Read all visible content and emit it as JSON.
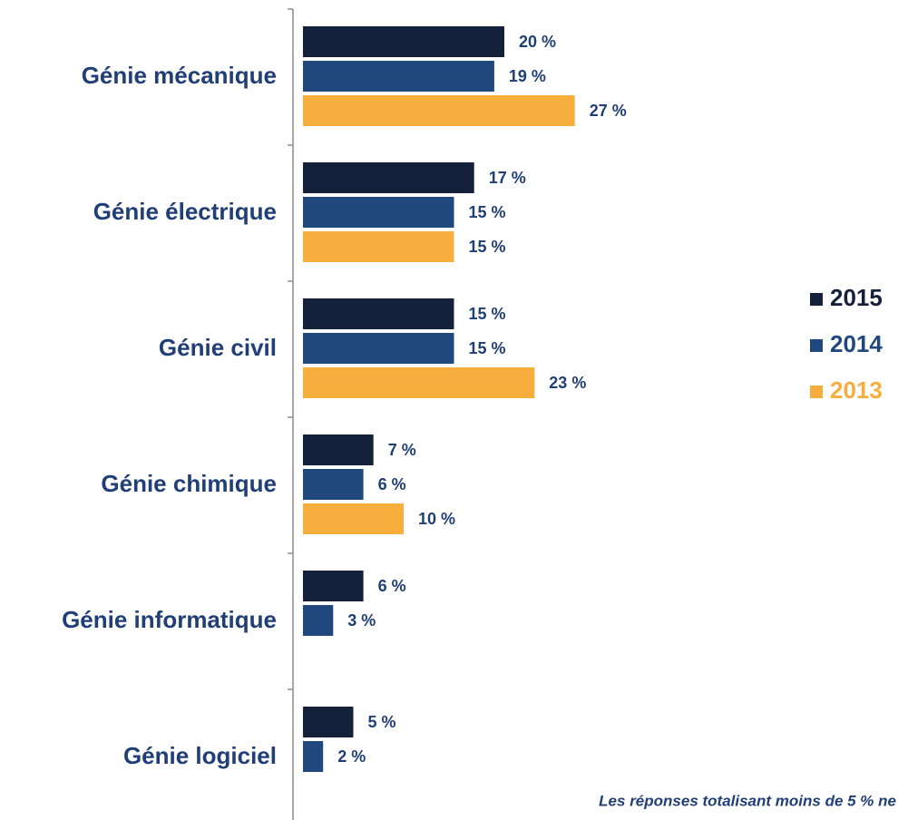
{
  "chart_data": {
    "type": "bar",
    "orientation": "horizontal",
    "categories": [
      "Génie mécanique",
      "Génie électrique",
      "Génie civil",
      "Génie chimique",
      "Génie informatique",
      "Génie logiciel"
    ],
    "series": [
      {
        "name": "2015",
        "color": "#15213b",
        "values": [
          20,
          17,
          15,
          7,
          6,
          5
        ],
        "value_labels": [
          "20 %",
          "17 %",
          "15 %",
          "7 %",
          "6 %",
          "5 %"
        ]
      },
      {
        "name": "2014",
        "color": "#20487e",
        "values": [
          19,
          15,
          15,
          6,
          3,
          2
        ],
        "value_labels": [
          "19 %",
          "15 %",
          "15 %",
          "6 %",
          "3 %",
          "2 %"
        ]
      },
      {
        "name": "2013",
        "color": "#f8ae3c",
        "values": [
          27,
          15,
          23,
          10,
          null,
          null
        ],
        "value_labels": [
          "27 %",
          "15 %",
          "23 %",
          "10 %",
          null,
          null
        ]
      }
    ],
    "xlim": [
      0,
      50
    ],
    "legend": "right",
    "note": "Les réponses totalisant moins de 5 % ne"
  }
}
